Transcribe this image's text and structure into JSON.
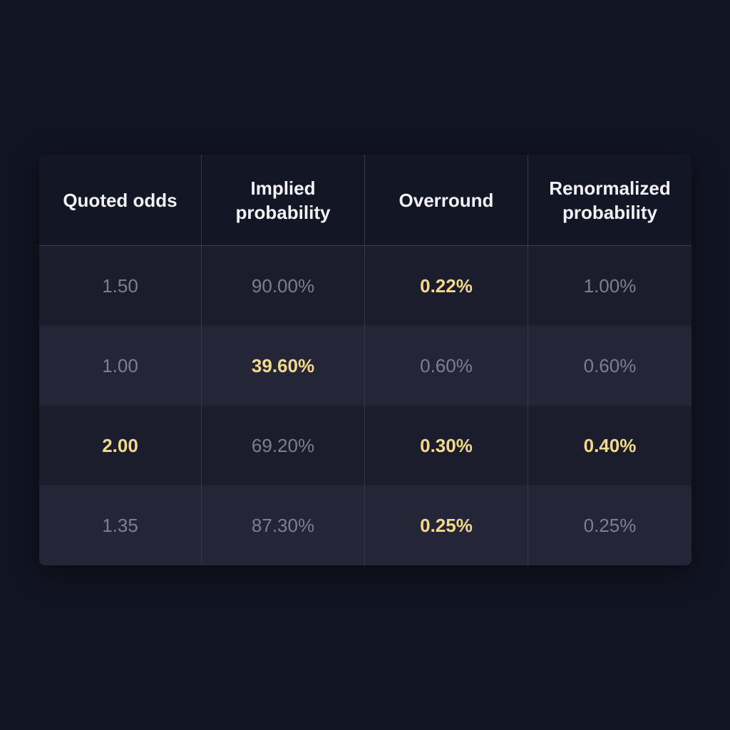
{
  "table": {
    "headers": [
      "Quoted odds",
      "Implied\nprobability",
      "Overround",
      "Renormalized\nprobability"
    ],
    "rows": [
      [
        {
          "text": "1.50",
          "highlight": false
        },
        {
          "text": "90.00%",
          "highlight": false
        },
        {
          "text": "0.22%",
          "highlight": true
        },
        {
          "text": "1.00%",
          "highlight": false
        }
      ],
      [
        {
          "text": "1.00",
          "highlight": false
        },
        {
          "text": "39.60%",
          "highlight": true
        },
        {
          "text": "0.60%",
          "highlight": false
        },
        {
          "text": "0.60%",
          "highlight": false
        }
      ],
      [
        {
          "text": "2.00",
          "highlight": true
        },
        {
          "text": "69.20%",
          "highlight": false
        },
        {
          "text": "0.30%",
          "highlight": true
        },
        {
          "text": "0.40%",
          "highlight": true
        }
      ],
      [
        {
          "text": "1.35",
          "highlight": false
        },
        {
          "text": "87.30%",
          "highlight": false
        },
        {
          "text": "0.25%",
          "highlight": true
        },
        {
          "text": "0.25%",
          "highlight": false
        }
      ]
    ]
  },
  "colors": {
    "background": "#111422",
    "highlight": "#f3d98a",
    "muted_text": "#7c7f91",
    "header_text": "#f2f2f6"
  }
}
